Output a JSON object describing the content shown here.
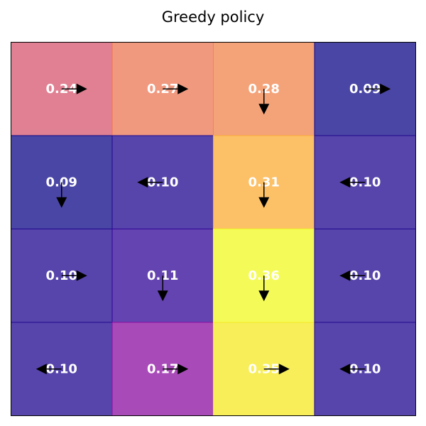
{
  "chart_data": {
    "type": "heatmap",
    "title": "Greedy policy",
    "rows": 4,
    "cols": 4,
    "values": [
      [
        0.24,
        0.27,
        0.28,
        0.09
      ],
      [
        0.09,
        0.1,
        0.31,
        0.1
      ],
      [
        0.1,
        0.11,
        0.36,
        0.1
      ],
      [
        0.1,
        0.17,
        0.35,
        0.1
      ]
    ],
    "labels": [
      [
        "0.24",
        "0.27",
        "0.28",
        "0.09"
      ],
      [
        "0.09",
        "0.10",
        "0.31",
        "0.10"
      ],
      [
        "0.10",
        "0.11",
        "0.36",
        "0.10"
      ],
      [
        "0.10",
        "0.17",
        "0.35",
        "0.10"
      ]
    ],
    "actions": [
      [
        "right",
        "right",
        "down",
        "right"
      ],
      [
        "down",
        "left",
        "down",
        "left"
      ],
      [
        "right",
        "down",
        "down",
        "left"
      ],
      [
        "left",
        "right",
        "right",
        "left"
      ]
    ],
    "colormap": "plasma",
    "cell_alpha": 0.75,
    "label_color": "#ffffff",
    "arrow_color": "#000000",
    "axis_ticks": false,
    "grid": false,
    "legend": "none"
  }
}
